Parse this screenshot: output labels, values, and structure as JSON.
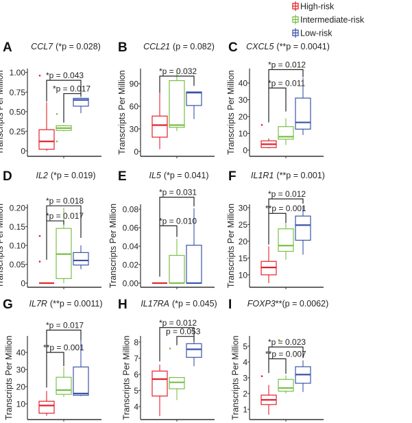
{
  "legend": {
    "placement": "top-right",
    "items": [
      {
        "label": "High-risk",
        "color": "#e3202b"
      },
      {
        "label": "Intermediate-risk",
        "color": "#78bf45"
      },
      {
        "label": "Low-risk",
        "color": "#3953a4"
      }
    ]
  },
  "ylabel": "Transcripts Per Million",
  "chart_data": [
    {
      "type": "box",
      "letter": "A",
      "gene": "CCL7",
      "pvalue": "(*p = 0.028)",
      "ylim": [
        -0.07,
        1.05
      ],
      "ticks": [
        0,
        0.25,
        0.5,
        0.75,
        1.0
      ],
      "tick_labels": [
        "0",
        "0.25",
        "0.50",
        "0.75",
        "1.00"
      ],
      "boxes": [
        {
          "group": "High-risk",
          "lo": 0.0,
          "q1": 0.02,
          "med": 0.12,
          "q3": 0.27,
          "hi": 0.62,
          "outliers": [
            0.96
          ]
        },
        {
          "group": "Intermediate-risk",
          "lo": 0.25,
          "q1": 0.26,
          "med": 0.29,
          "q3": 0.32,
          "hi": 0.33,
          "outliers": [
            0.47,
            0.12
          ]
        },
        {
          "group": "Low-risk",
          "lo": 0.48,
          "q1": 0.57,
          "med": 0.65,
          "q3": 0.67,
          "hi": 0.68,
          "outliers": []
        }
      ],
      "brackets": [
        {
          "from": 0,
          "to": 2,
          "y": 0.9,
          "left_end": 0.63,
          "right_end": 0.73,
          "label": "*p = 0.043"
        },
        {
          "from": 1,
          "to": 2,
          "y": 0.73,
          "left_end": 0.36,
          "right_end": 0.69,
          "label": "*p = 0.017"
        }
      ]
    },
    {
      "type": "box",
      "letter": "B",
      "gene": "CCL21",
      "pvalue": "(p = 0.082)",
      "ylim": [
        -6.4,
        110
      ],
      "ticks": [
        0,
        30,
        60,
        90
      ],
      "tick_labels": [
        "0",
        "30",
        "60",
        "90"
      ],
      "boxes": [
        {
          "group": "High-risk",
          "lo": 3,
          "q1": 19,
          "med": 35,
          "q3": 47,
          "hi": 78,
          "outliers": []
        },
        {
          "group": "Intermediate-risk",
          "lo": 27,
          "q1": 32,
          "med": 35,
          "q3": 94,
          "hi": 105,
          "outliers": []
        },
        {
          "group": "Low-risk",
          "lo": 43,
          "q1": 61,
          "med": 78,
          "q3": 79,
          "hi": 79,
          "outliers": []
        }
      ],
      "brackets": [
        {
          "from": 0,
          "to": 2,
          "y": 100,
          "left_end": 78,
          "right_end": 87,
          "label": "*p = 0.032"
        }
      ]
    },
    {
      "type": "box",
      "letter": "C",
      "gene": "CXCL5",
      "pvalue": "(**p = 0.0041)",
      "ylim": [
        -3.7,
        48.6
      ],
      "ticks": [
        0,
        10,
        20,
        30,
        40
      ],
      "tick_labels": [
        "0",
        "10",
        "20",
        "30",
        "40"
      ],
      "boxes": [
        {
          "group": "High-risk",
          "lo": 1,
          "q1": 1.5,
          "med": 3.5,
          "q3": 5.5,
          "hi": 7,
          "outliers": [
            15
          ]
        },
        {
          "group": "Intermediate-risk",
          "lo": 3,
          "q1": 6.5,
          "med": 8,
          "q3": 14,
          "hi": 19,
          "outliers": []
        },
        {
          "group": "Low-risk",
          "lo": 9,
          "q1": 12.5,
          "med": 16.5,
          "q3": 31,
          "hi": 43,
          "outliers": []
        }
      ],
      "brackets": [
        {
          "from": 0,
          "to": 2,
          "y": 48,
          "left_end": 37,
          "right_end": 43.5,
          "label": "*p = 0.012"
        },
        {
          "from": 0,
          "to": 1,
          "y": 37,
          "left_end": 16.5,
          "right_end": 23,
          "label": "*p = 0.011"
        }
      ]
    },
    {
      "type": "box",
      "letter": "D",
      "gene": "IL2",
      "pvalue": "(*p = 0.019)",
      "ylim": [
        -0.011,
        0.209
      ],
      "ticks": [
        0,
        0.05,
        0.1,
        0.15,
        0.2
      ],
      "tick_labels": [
        "0",
        "0.05",
        "0.10",
        "0.15",
        "0.20"
      ],
      "boxes": [
        {
          "group": "High-risk",
          "lo": 0,
          "q1": 0,
          "med": 0,
          "q3": 0,
          "hi": 0,
          "outliers": [
            0.125,
            0.057
          ]
        },
        {
          "group": "Intermediate-risk",
          "lo": 0,
          "q1": 0.012,
          "med": 0.077,
          "q3": 0.145,
          "hi": 0.2,
          "outliers": []
        },
        {
          "group": "Low-risk",
          "lo": 0.037,
          "q1": 0.048,
          "med": 0.06,
          "q3": 0.081,
          "hi": 0.1,
          "outliers": []
        }
      ],
      "brackets": [
        {
          "from": 0,
          "to": 2,
          "y": 0.205,
          "left_end": 0.165,
          "right_end": 0.12,
          "label": "*p = 0.018"
        },
        {
          "from": 0,
          "to": 1,
          "y": 0.165,
          "left_end": 0.062,
          "right_end": 0.155,
          "label": "*p = 0.017"
        }
      ]
    },
    {
      "type": "box",
      "letter": "E",
      "gene": "IL5",
      "pvalue": "(*p = 0.041)",
      "ylim": [
        -0.0045,
        0.0853
      ],
      "ticks": [
        0,
        0.02,
        0.04,
        0.06,
        0.08
      ],
      "tick_labels": [
        "0.00",
        "0.02",
        "0.04",
        "0.06",
        "0.08"
      ],
      "boxes": [
        {
          "group": "High-risk",
          "lo": 0,
          "q1": 0,
          "med": 0,
          "q3": 0,
          "hi": 0,
          "outliers": []
        },
        {
          "group": "Intermediate-risk",
          "lo": 0,
          "q1": 0,
          "med": 0,
          "q3": 0.03,
          "hi": 0.048,
          "outliers": []
        },
        {
          "group": "Low-risk",
          "lo": 0,
          "q1": 0,
          "med": 0,
          "q3": 0.041,
          "hi": 0.081,
          "outliers": []
        }
      ],
      "brackets": [
        {
          "from": 0,
          "to": 2,
          "y": 0.093,
          "left_end": 0.062,
          "right_end": 0.083,
          "label": "*p = 0.031"
        },
        {
          "from": 0,
          "to": 1,
          "y": 0.062,
          "left_end": 0.007,
          "right_end": 0.05,
          "label": "*p = 0.010"
        }
      ]
    },
    {
      "type": "box",
      "letter": "F",
      "gene": "IL1R1",
      "pvalue": "(**p = 0.001)",
      "ylim": [
        6.3,
        31.0
      ],
      "ticks": [
        10,
        15,
        20,
        25,
        30
      ],
      "tick_labels": [
        "10",
        "15",
        "20",
        "25",
        "30"
      ],
      "boxes": [
        {
          "group": "High-risk",
          "lo": 7.5,
          "q1": 10,
          "med": 12.2,
          "q3": 14,
          "hi": 18.5,
          "outliers": []
        },
        {
          "group": "Intermediate-risk",
          "lo": 14.5,
          "q1": 17,
          "med": 18.7,
          "q3": 23.7,
          "hi": 25.5,
          "outliers": []
        },
        {
          "group": "Low-risk",
          "lo": 16,
          "q1": 20.3,
          "med": 24.8,
          "q3": 27.5,
          "hi": 30.5,
          "outliers": []
        }
      ],
      "brackets": [
        {
          "from": 0,
          "to": 2,
          "y": 32.6,
          "left_end": 28.3,
          "right_end": 31.2,
          "label": "*p = 0.012"
        },
        {
          "from": 0,
          "to": 1,
          "y": 28.3,
          "left_end": 19,
          "right_end": 25.5,
          "label": "**p = 0.001"
        }
      ]
    },
    {
      "type": "box",
      "letter": "G",
      "gene": "IL7R",
      "pvalue": "(**p = 0.0011)",
      "ylim": [
        0.8,
        49.6
      ],
      "ticks": [
        10,
        20,
        30,
        40
      ],
      "tick_labels": [
        "10",
        "20",
        "30",
        "40"
      ],
      "boxes": [
        {
          "group": "High-risk",
          "lo": 3,
          "q1": 4.5,
          "med": 9,
          "q3": 11.5,
          "hi": 17.5,
          "outliers": []
        },
        {
          "group": "Intermediate-risk",
          "lo": 14,
          "q1": 15.5,
          "med": 18,
          "q3": 25.5,
          "hi": 31.5,
          "outliers": []
        },
        {
          "group": "Low-risk",
          "lo": 14.5,
          "q1": 15,
          "med": 16,
          "q3": 31.5,
          "hi": 47,
          "outliers": []
        }
      ],
      "brackets": [
        {
          "from": 0,
          "to": 2,
          "y": 53,
          "left_end": 40,
          "right_end": 47,
          "label": "*p = 0.017"
        },
        {
          "from": 0,
          "to": 1,
          "y": 40,
          "left_end": 19.5,
          "right_end": 32,
          "label": "**p = 0.001"
        }
      ]
    },
    {
      "type": "box",
      "letter": "H",
      "gene": "IL17RA",
      "pvalue": "(*p = 0.045)",
      "ylim": [
        3.19,
        8.38
      ],
      "ticks": [
        4,
        5,
        6,
        7,
        8
      ],
      "tick_labels": [
        "4",
        "5",
        "6",
        "7",
        "8"
      ],
      "boxes": [
        {
          "group": "High-risk",
          "lo": 3.4,
          "q1": 4.65,
          "med": 5.7,
          "q3": 6.2,
          "hi": 6.6,
          "outliers": []
        },
        {
          "group": "Intermediate-risk",
          "lo": 4.4,
          "q1": 5.1,
          "med": 5.5,
          "q3": 5.8,
          "hi": 5.8,
          "outliers": [
            7.6
          ]
        },
        {
          "group": "Low-risk",
          "lo": 6.5,
          "q1": 7.05,
          "med": 7.55,
          "q3": 7.9,
          "hi": 8.3,
          "outliers": []
        }
      ],
      "brackets": [
        {
          "from": 0,
          "to": 2,
          "y": 8.9,
          "left_end": 6.8,
          "right_end": 8.35,
          "label": "*p = 0.012"
        },
        {
          "from": 1,
          "to": 2,
          "y": 8.35,
          "left_end": 7.8,
          "right_end": 8.05,
          "label": "p = 0.053"
        }
      ]
    },
    {
      "type": "box",
      "letter": "I",
      "gene": "FOXP3",
      "pvalue": "**(p = 0.0062)",
      "ylim": [
        0.35,
        5.65
      ],
      "ticks": [
        1,
        2,
        3,
        4,
        5
      ],
      "tick_labels": [
        "1",
        "2",
        "3",
        "4",
        "5"
      ],
      "boxes": [
        {
          "group": "High-risk",
          "lo": 0.65,
          "q1": 1.3,
          "med": 1.6,
          "q3": 1.9,
          "hi": 2.55,
          "outliers": [
            3.1
          ]
        },
        {
          "group": "Intermediate-risk",
          "lo": 2.0,
          "q1": 2.15,
          "med": 2.35,
          "q3": 2.9,
          "hi": 3.15,
          "outliers": [
            5.4
          ]
        },
        {
          "group": "Low-risk",
          "lo": 2.1,
          "q1": 2.65,
          "med": 3.2,
          "q3": 3.7,
          "hi": 4.1,
          "outliers": []
        }
      ],
      "brackets": [
        {
          "from": 0,
          "to": 2,
          "y": 4.95,
          "left_end": 4.2,
          "right_end": 4.25,
          "label": "*p = 0.023"
        },
        {
          "from": 0,
          "to": 1,
          "y": 4.2,
          "left_end": 3.3,
          "right_end": 3.25,
          "label": "**p = 0.007"
        }
      ]
    }
  ]
}
